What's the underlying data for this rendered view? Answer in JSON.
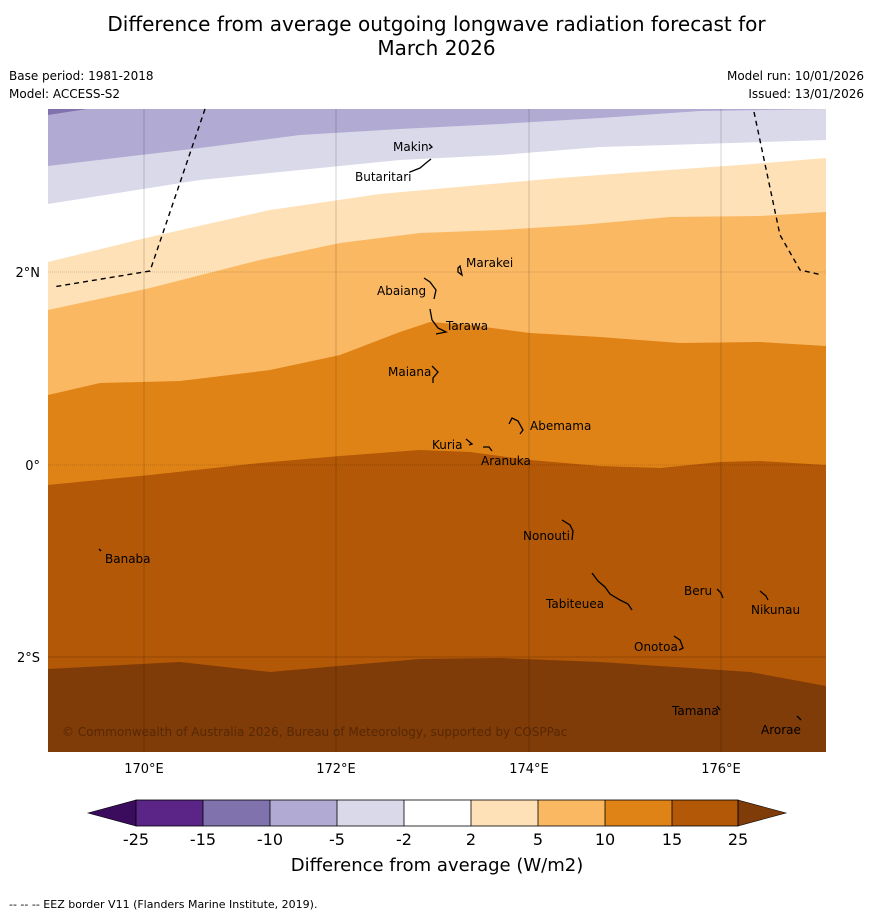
{
  "title_line1": "Difference from average outgoing longwave radiation forecast for",
  "title_line2": "March 2026",
  "base_period": "Base period: 1981-2018",
  "model": "Model: ACCESS-S2",
  "model_run": "Model run: 10/01/2026",
  "issued": "Issued: 13/01/2026",
  "lat_labels": {
    "n2": "2°N",
    "eq": "0°",
    "s2": "2°S"
  },
  "lon_labels": {
    "e170": "170°E",
    "e172": "172°E",
    "e174": "174°E",
    "e176": "176°E"
  },
  "places": {
    "makin": "Makin",
    "butaritari": "Butaritari",
    "marakei": "Marakei",
    "abaiang": "Abaiang",
    "tarawa": "Tarawa",
    "maiana": "Maiana",
    "abemama": "Abemama",
    "kuria": "Kuria",
    "aranuka": "Aranuka",
    "nonouti": "Nonouti",
    "banaba": "Banaba",
    "beru": "Beru",
    "tabiteuea": "Tabiteuea",
    "nikunau": "Nikunau",
    "onotoa": "Onotoa",
    "tamana": "Tamana",
    "arorae": "Arorae"
  },
  "copyright": "© Commonwealth of Australia 2026, Bureau of Meteorology, supported by COSPPac",
  "legend": {
    "label": "Difference from average (W/m2)",
    "ticks": [
      "-25",
      "-15",
      "-10",
      "-5",
      "-2",
      "2",
      "5",
      "10",
      "15",
      "25"
    ],
    "colors": {
      "below_min": "#3b0c5e",
      "b1": "#5a2586",
      "b2": "#8073ad",
      "b3": "#b1aad2",
      "b4": "#d9d9ea",
      "b5": "#ffffff",
      "b6": "#fee1b6",
      "b7": "#fbb862",
      "b8": "#e08317",
      "b9": "#b25806",
      "above_max": "#7f3b08"
    }
  },
  "footnote": "--  --  -- EEZ border V11 (Flanders Marine Institute, 2019)."
}
